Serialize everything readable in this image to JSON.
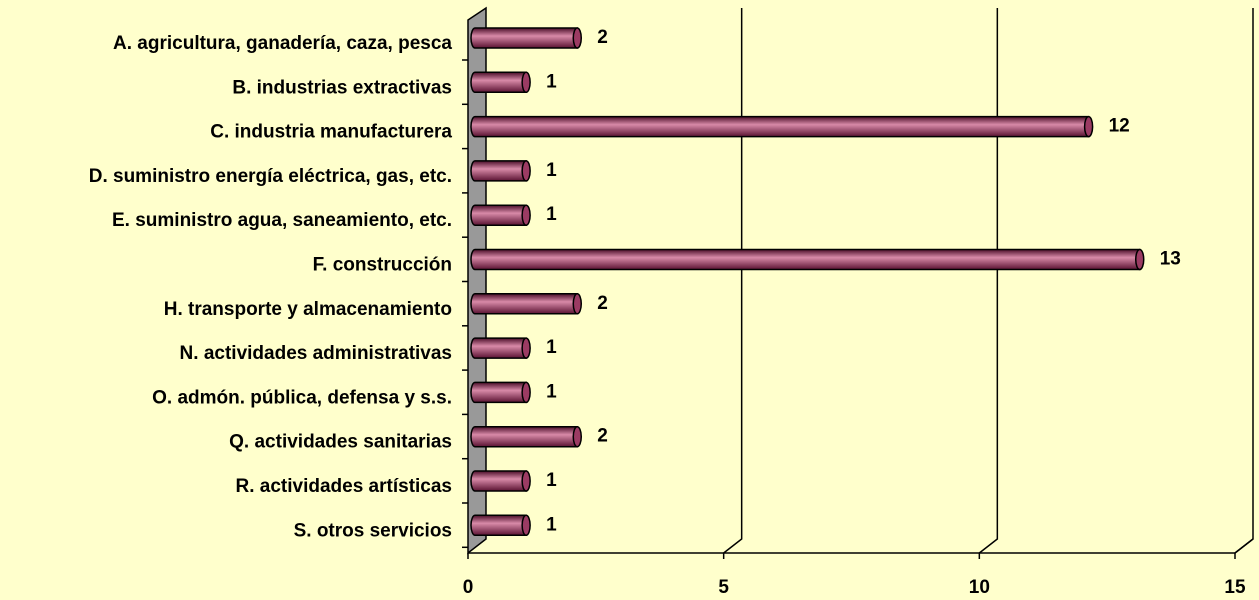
{
  "chart_data": {
    "type": "bar",
    "orientation": "horizontal",
    "categories": [
      "A. agricultura, ganadería, caza, pesca",
      "B. industrias extractivas",
      "C. industria manufacturera",
      "D. suministro energía eléctrica, gas, etc.",
      "E. suministro agua, saneamiento, etc.",
      "F. construcción",
      "H. transporte y almacenamiento",
      "N. actividades administrativas",
      "O. admón. pública, defensa y s.s.",
      "Q. actividades sanitarias",
      "R. actividades artísticas",
      "S. otros servicios"
    ],
    "values": [
      2,
      1,
      12,
      1,
      1,
      13,
      2,
      1,
      1,
      2,
      1,
      1
    ],
    "color": "#9b3b63",
    "xlim": [
      0,
      15
    ],
    "xticks": [
      0,
      5,
      10,
      15
    ],
    "grid": true
  }
}
